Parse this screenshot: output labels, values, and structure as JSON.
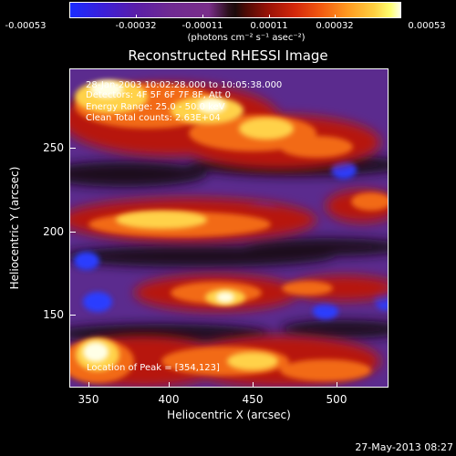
{
  "colorbar": {
    "tick_labels": [
      "-0.00053",
      "-0.00032",
      "-0.00011",
      "0.00011",
      "0.00032",
      "0.00053"
    ],
    "units": "(photons cm⁻² s⁻¹ asec⁻²)",
    "colors": [
      "#1a2cff",
      "#6f2a92",
      "#1b0a0a",
      "#d3270a",
      "#ff9a20",
      "#ffffe8"
    ]
  },
  "plot": {
    "title": "Reconstructed RHESSI Image",
    "notes": {
      "time": "28-Jan-2003 10:02:28.000 to 10:05:38.000",
      "detectors": "Detectors: 4F 5F 6F 7F 8F, Att 0",
      "energy": "Energy Range: 25.0 - 50.0 keV",
      "clean": "Clean    Total counts: 2.63E+04",
      "peak": "Location of Peak = [354,123]"
    },
    "xlabel": "Heliocentric X (arcsec)",
    "ylabel": "Heliocentric Y (arcsec)",
    "x_ticks": [
      "350",
      "400",
      "450",
      "500"
    ],
    "y_ticks": [
      "250",
      "200",
      "150"
    ]
  },
  "footer": {
    "timestamp": "27-May-2013 08:27"
  }
}
